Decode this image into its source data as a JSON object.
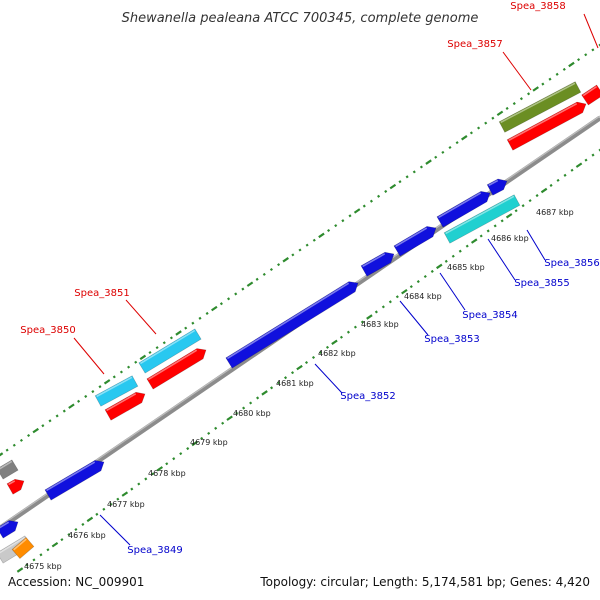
{
  "title": "Shewanella pealeana ATCC 700345, complete genome",
  "footer": {
    "accession": "Accession: NC_009901",
    "summary": "Topology: circular; Length: 5,174,581 bp; Genes: 4,420"
  },
  "colors": {
    "backbone": "#8c8c8c",
    "tick_dots": "#2e8b2e",
    "label_red": "#dd0000",
    "label_blue": "#0000cc",
    "feature_red": "#ff0000",
    "feature_blue": "#1010dd",
    "feature_skyblue": "#28c8f0",
    "feature_cyan": "#20d0d0",
    "feature_olive": "#6b8e23",
    "feature_orange": "#ff8c00",
    "feature_gray": "#808080"
  },
  "kbp_labels": [
    "4675 kbp",
    "4676 kbp",
    "4677 kbp",
    "4678 kbp",
    "4679 kbp",
    "4680 kbp",
    "4681 kbp",
    "4682 kbp",
    "4683 kbp",
    "4684 kbp",
    "4685 kbp",
    "4686 kbp",
    "4687 kbp"
  ],
  "gene_labels": [
    {
      "text": "Spea_3858",
      "color": "red"
    },
    {
      "text": "Spea_3857",
      "color": "red"
    },
    {
      "text": "Spea_3851",
      "color": "red"
    },
    {
      "text": "Spea_3850",
      "color": "red"
    },
    {
      "text": "Spea_3856",
      "color": "blue"
    },
    {
      "text": "Spea_3855",
      "color": "blue"
    },
    {
      "text": "Spea_3854",
      "color": "blue"
    },
    {
      "text": "Spea_3853",
      "color": "blue"
    },
    {
      "text": "Spea_3852",
      "color": "blue"
    },
    {
      "text": "Spea_3849",
      "color": "blue"
    }
  ]
}
